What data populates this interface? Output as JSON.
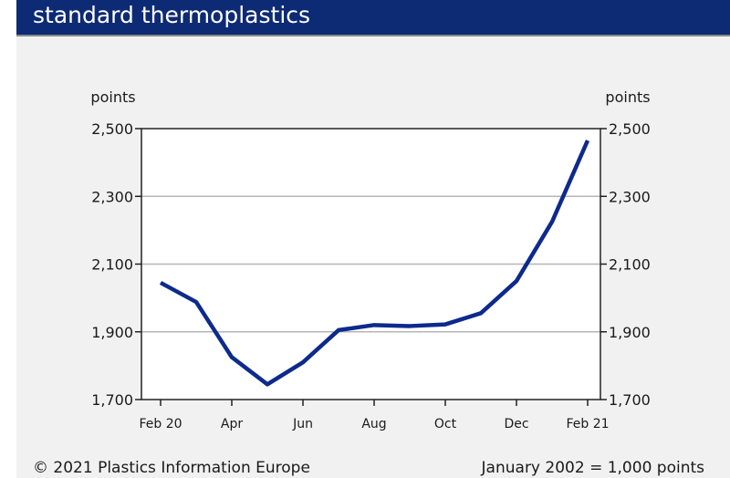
{
  "title": "standard thermoplastics",
  "footer": {
    "copyright": "© 2021 Plastics Information Europe",
    "note": "January 2002 = 1,000 points"
  },
  "colors": {
    "title_bg": "#0d2a74",
    "line": "#0d2a8c",
    "panel_bg": "#f1f1f1",
    "grid": "#b5b5b5"
  },
  "chart_data": {
    "type": "line",
    "ylabel_left": "points",
    "ylabel_right": "points",
    "ylim": [
      1700,
      2500
    ],
    "yticks": [
      1700,
      1900,
      2100,
      2300,
      2500
    ],
    "ytick_labels": [
      "1,700",
      "1,900",
      "2,100",
      "2,300",
      "2,500"
    ],
    "grid": true,
    "x_tick_labels": [
      "Feb 20",
      "Apr",
      "Jun",
      "Aug",
      "Oct",
      "Dec",
      "Feb 21"
    ],
    "x_tick_index": [
      0,
      2,
      4,
      6,
      8,
      10,
      12
    ],
    "x": [
      "Feb 20",
      "Mar 20",
      "Apr 20",
      "May 20",
      "Jun 20",
      "Jul 20",
      "Aug 20",
      "Sep 20",
      "Oct 20",
      "Nov 20",
      "Dec 20",
      "Jan 21",
      "Feb 21"
    ],
    "series": [
      {
        "values": [
          2045,
          1988,
          1825,
          1745,
          1810,
          1905,
          1920,
          1917,
          1922,
          1955,
          2050,
          2225,
          2465
        ]
      }
    ]
  }
}
